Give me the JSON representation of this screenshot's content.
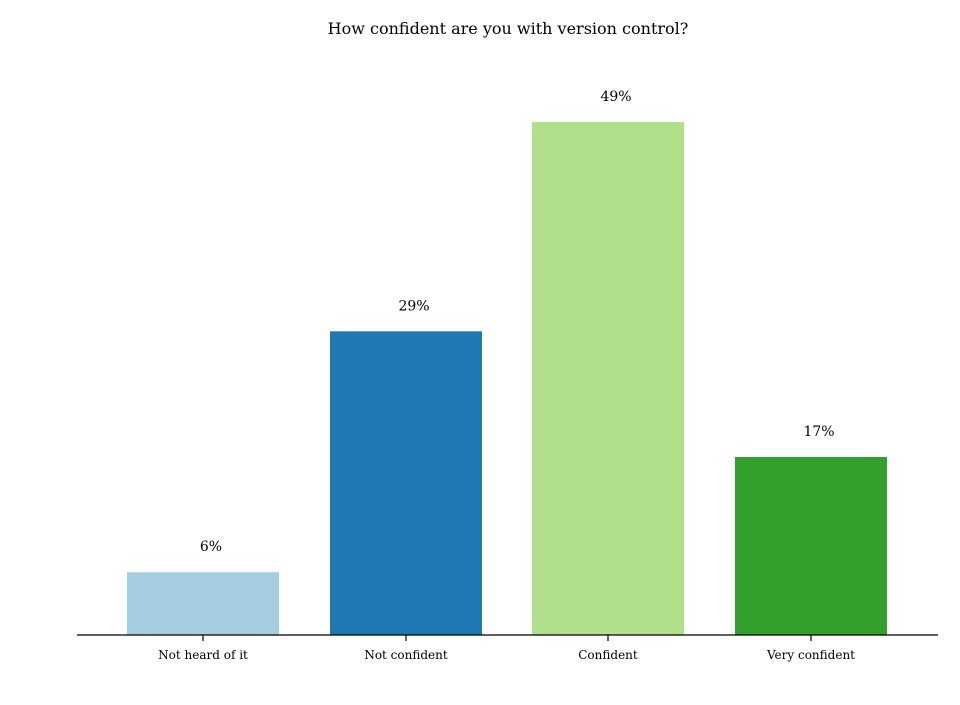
{
  "chart_data": {
    "type": "bar",
    "title": "How confident are you with version control?",
    "xlabel": "",
    "ylabel": "",
    "categories": [
      "Not heard of it",
      "Not confident",
      "Confident",
      "Very confident"
    ],
    "values": [
      6,
      29,
      49,
      17
    ],
    "value_labels": [
      "6%",
      "29%",
      "49%",
      "17%"
    ],
    "colors": [
      "#a6cee3",
      "#1f78b4",
      "#b2df8a",
      "#33a02c"
    ],
    "ylim": [
      0,
      53
    ],
    "grid": false,
    "legend": "none"
  }
}
